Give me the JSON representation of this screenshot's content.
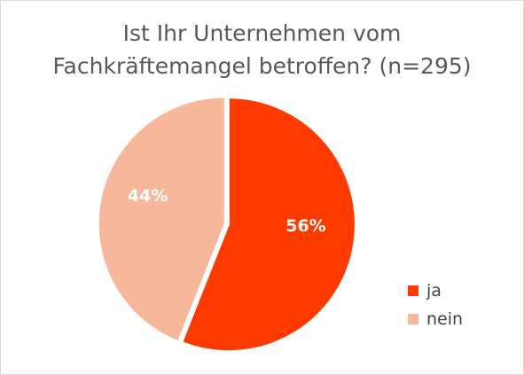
{
  "chart_data": {
    "type": "pie",
    "title": [
      "Ist Ihr Unternehmen vom",
      "Fachkräftemangel betroffen? (n=295)"
    ],
    "slices": [
      {
        "label": "ja",
        "value": 56,
        "display": "56%",
        "color": "#ff3a00"
      },
      {
        "label": "nein",
        "value": 44,
        "display": "44%",
        "color": "#f7b79a"
      }
    ],
    "legend_position": "right-bottom"
  }
}
